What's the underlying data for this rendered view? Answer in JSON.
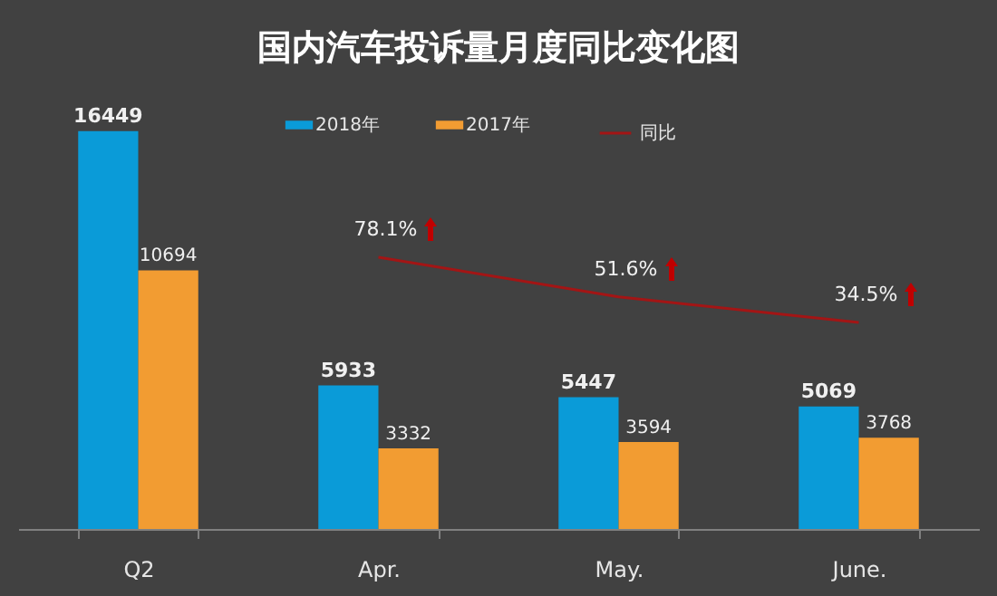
{
  "chart_data": {
    "type": "bar",
    "title": "国内汽车投诉量月度同比变化图",
    "categories": [
      "Q2",
      "Apr.",
      "May.",
      "June."
    ],
    "series": [
      {
        "name": "2018年",
        "color": "#0a9bd8",
        "values": [
          16449,
          5933,
          5447,
          5069
        ]
      },
      {
        "name": "2017年",
        "color": "#f29c32",
        "values": [
          10694,
          3332,
          3594,
          3768
        ]
      },
      {
        "name": "同比",
        "type": "line",
        "axis": "y2",
        "color": "#a31515",
        "values": [
          null,
          78.1,
          51.6,
          34.5
        ],
        "value_labels": [
          null,
          "78.1%",
          "51.6%",
          "34.5%"
        ]
      }
    ],
    "data_labels": true,
    "ylim": [
      0,
      17000
    ],
    "legend": "top",
    "grid": false,
    "tick_labels": "x"
  }
}
